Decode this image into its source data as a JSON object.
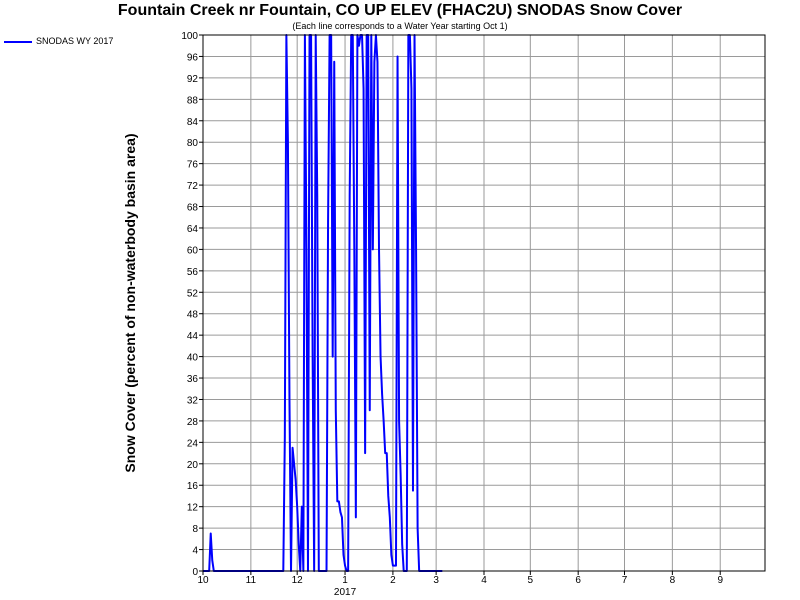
{
  "chart_data": {
    "type": "line",
    "title": "Fountain Creek nr Fountain, CO UP ELEV (FHAC2U) SNODAS Snow Cover",
    "subtitle": "(Each line corresponds to a Water Year starting Oct 1)",
    "ylabel": "Snow Cover (percent of non-waterbody basin area)",
    "xlabel": "",
    "ylim": [
      0,
      100
    ],
    "xlim": [
      "2016-10-01",
      "2017-09-30"
    ],
    "grid": true,
    "legend_position": "top-left",
    "x_ticks": [
      {
        "date": "2016-10-01",
        "label": "10"
      },
      {
        "date": "2016-11-01",
        "label": "11"
      },
      {
        "date": "2016-12-01",
        "label": "12"
      },
      {
        "date": "2017-01-01",
        "label": "1",
        "sublabel": "2017"
      },
      {
        "date": "2017-02-01",
        "label": "2"
      },
      {
        "date": "2017-03-01",
        "label": "3"
      },
      {
        "date": "2017-04-01",
        "label": "4"
      },
      {
        "date": "2017-05-01",
        "label": "5"
      },
      {
        "date": "2017-06-01",
        "label": "6"
      },
      {
        "date": "2017-07-01",
        "label": "7"
      },
      {
        "date": "2017-08-01",
        "label": "8"
      },
      {
        "date": "2017-09-01",
        "label": "9"
      }
    ],
    "y_ticks": [
      0,
      4,
      8,
      12,
      16,
      20,
      24,
      28,
      32,
      36,
      40,
      44,
      48,
      52,
      56,
      60,
      64,
      68,
      72,
      76,
      80,
      84,
      88,
      92,
      96,
      100
    ],
    "series": [
      {
        "name": "SNODAS WY 2017",
        "color": "#0000ff",
        "points": [
          [
            "2016-10-01",
            0
          ],
          [
            "2016-10-05",
            0
          ],
          [
            "2016-10-06",
            7
          ],
          [
            "2016-10-07",
            2
          ],
          [
            "2016-10-08",
            0
          ],
          [
            "2016-11-22",
            0
          ],
          [
            "2016-11-23",
            25
          ],
          [
            "2016-11-24",
            100
          ],
          [
            "2016-11-25",
            80
          ],
          [
            "2016-11-26",
            32
          ],
          [
            "2016-11-27",
            0
          ],
          [
            "2016-11-28",
            23
          ],
          [
            "2016-11-29",
            20
          ],
          [
            "2016-11-30",
            17
          ],
          [
            "2016-12-01",
            12
          ],
          [
            "2016-12-02",
            5
          ],
          [
            "2016-12-03",
            0
          ],
          [
            "2016-12-04",
            12
          ],
          [
            "2016-12-05",
            0
          ],
          [
            "2016-12-06",
            100
          ],
          [
            "2016-12-07",
            60
          ],
          [
            "2016-12-08",
            0
          ],
          [
            "2016-12-09",
            100
          ],
          [
            "2016-12-10",
            100
          ],
          [
            "2016-12-11",
            40
          ],
          [
            "2016-12-12",
            0
          ],
          [
            "2016-12-13",
            100
          ],
          [
            "2016-12-14",
            70
          ],
          [
            "2016-12-15",
            0
          ],
          [
            "2016-12-20",
            0
          ],
          [
            "2016-12-21",
            65
          ],
          [
            "2016-12-22",
            100
          ],
          [
            "2016-12-23",
            100
          ],
          [
            "2016-12-24",
            40
          ],
          [
            "2016-12-25",
            95
          ],
          [
            "2016-12-26",
            30
          ],
          [
            "2016-12-27",
            13
          ],
          [
            "2016-12-28",
            13
          ],
          [
            "2016-12-29",
            11
          ],
          [
            "2016-12-30",
            10
          ],
          [
            "2016-12-31",
            3
          ],
          [
            "2017-01-01",
            1
          ],
          [
            "2017-01-02",
            0
          ],
          [
            "2017-01-03",
            0
          ],
          [
            "2017-01-04",
            70
          ],
          [
            "2017-01-05",
            100
          ],
          [
            "2017-01-06",
            100
          ],
          [
            "2017-01-07",
            60
          ],
          [
            "2017-01-08",
            10
          ],
          [
            "2017-01-09",
            100
          ],
          [
            "2017-01-10",
            98
          ],
          [
            "2017-01-11",
            100
          ],
          [
            "2017-01-12",
            100
          ],
          [
            "2017-01-13",
            90
          ],
          [
            "2017-01-14",
            22
          ],
          [
            "2017-01-15",
            100
          ],
          [
            "2017-01-16",
            100
          ],
          [
            "2017-01-17",
            30
          ],
          [
            "2017-01-18",
            100
          ],
          [
            "2017-01-19",
            60
          ],
          [
            "2017-01-20",
            95
          ],
          [
            "2017-01-21",
            100
          ],
          [
            "2017-01-22",
            95
          ],
          [
            "2017-01-23",
            60
          ],
          [
            "2017-01-24",
            40
          ],
          [
            "2017-01-25",
            33
          ],
          [
            "2017-01-26",
            28
          ],
          [
            "2017-01-27",
            22
          ],
          [
            "2017-01-28",
            22
          ],
          [
            "2017-01-29",
            14
          ],
          [
            "2017-01-30",
            10
          ],
          [
            "2017-01-31",
            3
          ],
          [
            "2017-02-01",
            1
          ],
          [
            "2017-02-03",
            1
          ],
          [
            "2017-02-04",
            96
          ],
          [
            "2017-02-05",
            28
          ],
          [
            "2017-02-06",
            18
          ],
          [
            "2017-02-07",
            5
          ],
          [
            "2017-02-08",
            0
          ],
          [
            "2017-02-10",
            0
          ],
          [
            "2017-02-11",
            100
          ],
          [
            "2017-02-12",
            100
          ],
          [
            "2017-02-13",
            90
          ],
          [
            "2017-02-14",
            15
          ],
          [
            "2017-02-15",
            100
          ],
          [
            "2017-02-16",
            60
          ],
          [
            "2017-02-17",
            8
          ],
          [
            "2017-02-18",
            0
          ],
          [
            "2017-03-05",
            0
          ]
        ]
      }
    ]
  }
}
